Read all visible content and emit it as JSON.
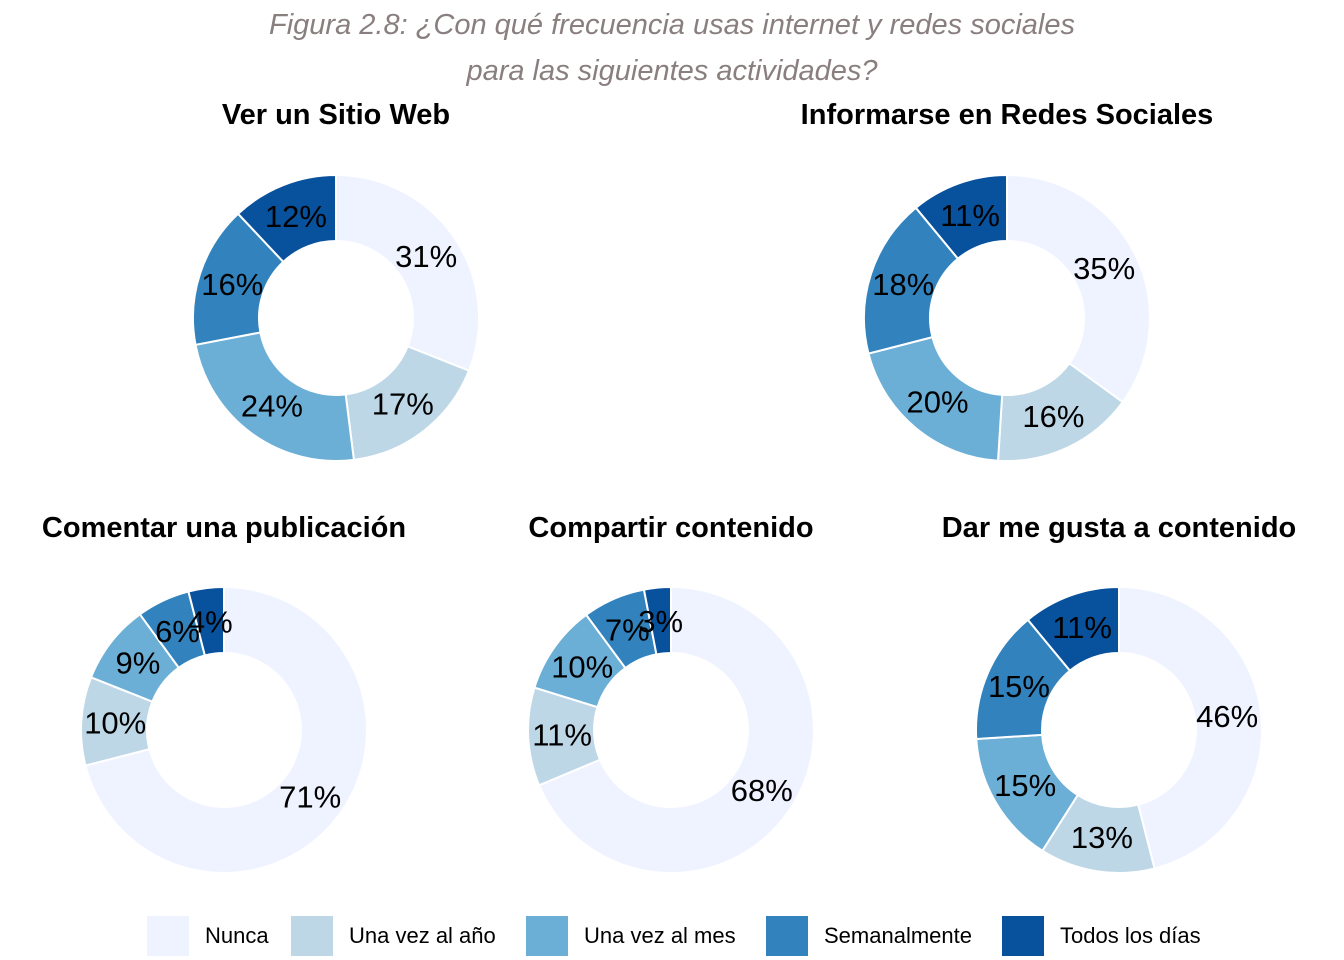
{
  "figure": {
    "title_line1": "Figura 2.8: ¿Con qué frecuencia usas internet y redes sociales",
    "title_line2": "para las siguientes actividades?"
  },
  "colors": {
    "Nunca": "#eff3ff",
    "Una vez al año": "#bdd7e7",
    "Una vez al mes": "#6baed6",
    "Semanalmente": "#3182bd",
    "Todos los días": "#08519c"
  },
  "legend": {
    "items": [
      "Nunca",
      "Una vez al año",
      "Una vez al mes",
      "Semanalmente",
      "Todos los días"
    ]
  },
  "chart_data": [
    {
      "type": "pie",
      "title": "Ver un Sitio Web",
      "categories": [
        "Nunca",
        "Una vez al año",
        "Una vez al mes",
        "Semanalmente",
        "Todos los días"
      ],
      "values": [
        31,
        17,
        24,
        16,
        12
      ],
      "labels": [
        "31%",
        "17%",
        "24%",
        "16%",
        "12%"
      ]
    },
    {
      "type": "pie",
      "title": "Informarse en Redes Sociales",
      "categories": [
        "Nunca",
        "Una vez al año",
        "Una vez al mes",
        "Semanalmente",
        "Todos los días"
      ],
      "values": [
        35,
        16,
        20,
        18,
        11
      ],
      "labels": [
        "35%",
        "16%",
        "20%",
        "18%",
        "11%"
      ]
    },
    {
      "type": "pie",
      "title": "Comentar una publicación",
      "categories": [
        "Nunca",
        "Una vez al año",
        "Una vez al mes",
        "Semanalmente",
        "Todos los días"
      ],
      "values": [
        71,
        10,
        9,
        6,
        4
      ],
      "labels": [
        "71%",
        "10%",
        "9%",
        "6%",
        "4%"
      ]
    },
    {
      "type": "pie",
      "title": "Compartir contenido",
      "categories": [
        "Nunca",
        "Una vez al año",
        "Una vez al mes",
        "Semanalmente",
        "Todos los días"
      ],
      "values": [
        68,
        11,
        10,
        7,
        3
      ],
      "labels": [
        "68%",
        "11%",
        "10%",
        "7%",
        "3%"
      ]
    },
    {
      "type": "pie",
      "title": "Dar me gusta a contenido",
      "categories": [
        "Nunca",
        "Una vez al año",
        "Una vez al mes",
        "Semanalmente",
        "Todos los días"
      ],
      "values": [
        46,
        13,
        15,
        15,
        11
      ],
      "labels": [
        "46%",
        "13%",
        "15%",
        "15%",
        "11%"
      ]
    }
  ]
}
